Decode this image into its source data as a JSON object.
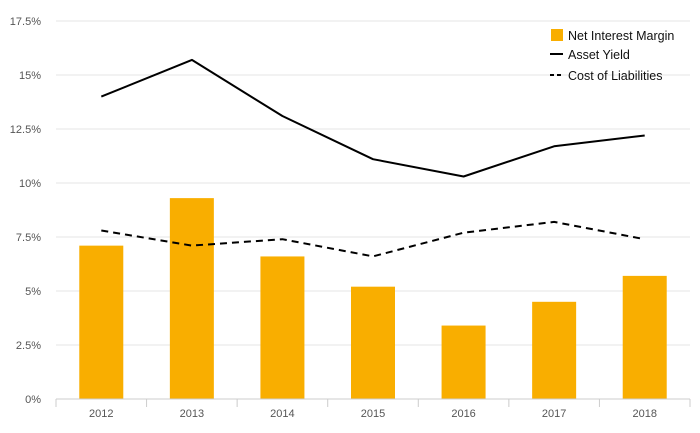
{
  "chart_data": {
    "type": "bar+line",
    "title": "",
    "xlabel": "",
    "ylabel": "",
    "categories": [
      "2012",
      "2013",
      "2014",
      "2015",
      "2016",
      "2017",
      "2018"
    ],
    "ylim": [
      0,
      17.5
    ],
    "yticks": [
      0,
      2.5,
      5,
      7.5,
      10,
      12.5,
      15,
      17.5
    ],
    "ytick_labels": [
      "0%",
      "2.5%",
      "5%",
      "7.5%",
      "10%",
      "12.5%",
      "15%",
      "17.5%"
    ],
    "grid": true,
    "legend_position": "top-right",
    "series": [
      {
        "name": "Net Interest Margin",
        "kind": "bar",
        "color": "#F9AE00",
        "values": [
          7.1,
          9.3,
          6.6,
          5.2,
          3.4,
          4.5,
          5.7
        ]
      },
      {
        "name": "Asset Yield",
        "kind": "line",
        "style": "solid",
        "color": "#000000",
        "values": [
          14.0,
          15.7,
          13.1,
          11.1,
          10.3,
          11.7,
          12.2
        ]
      },
      {
        "name": "Cost of Liabilities",
        "kind": "line",
        "style": "dashed",
        "color": "#000000",
        "values": [
          7.8,
          7.1,
          7.4,
          6.6,
          7.7,
          8.2,
          7.4
        ]
      }
    ]
  }
}
